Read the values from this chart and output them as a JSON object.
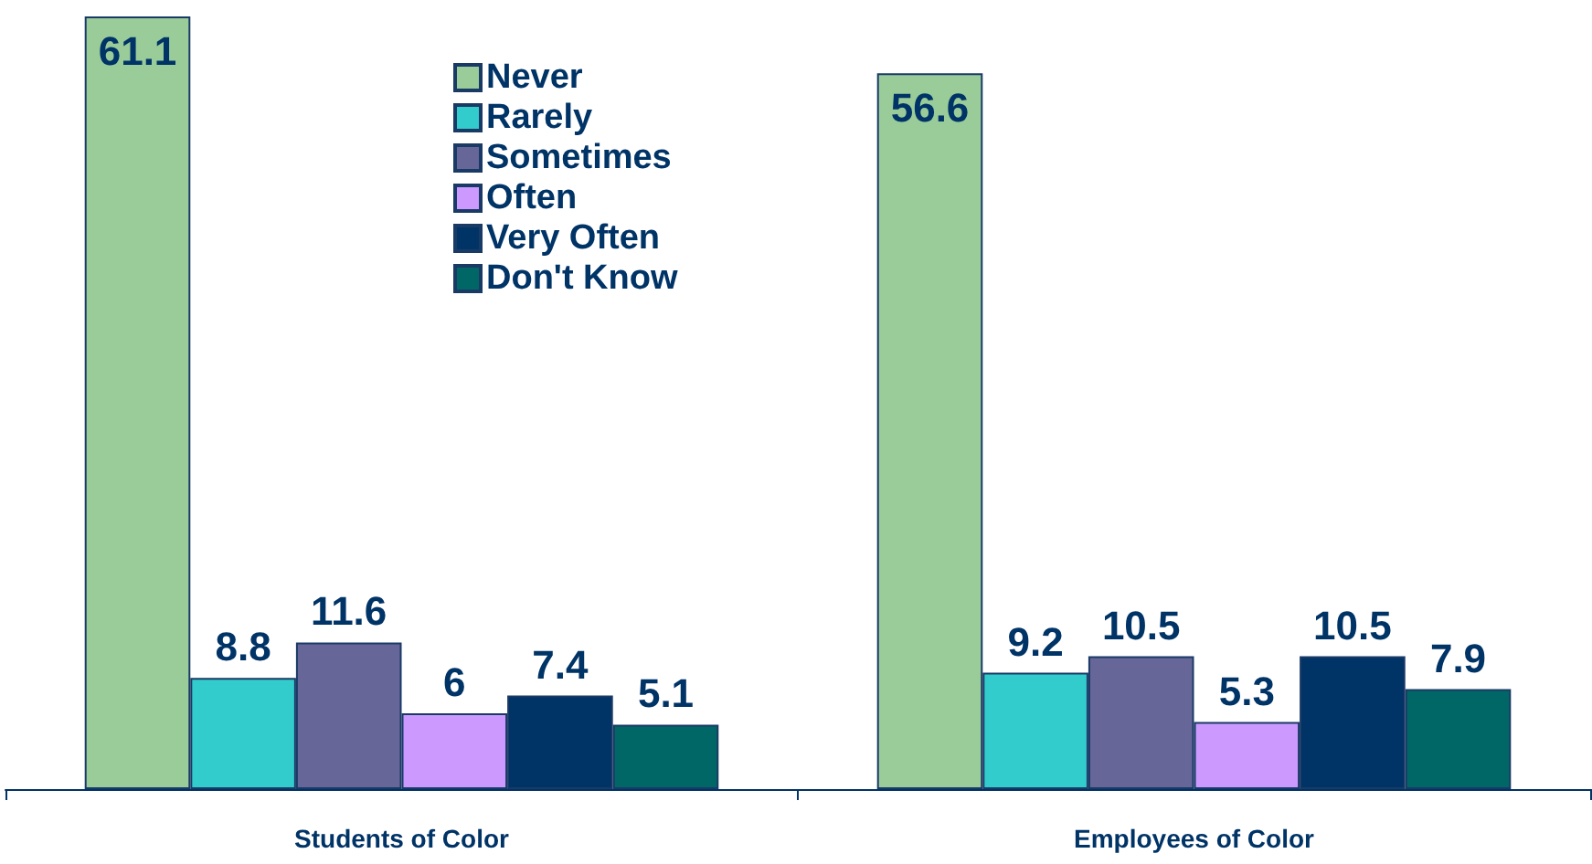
{
  "chart_data": {
    "type": "bar",
    "categories": [
      "Students of Color",
      "Employees of Color"
    ],
    "series": [
      {
        "name": "Never",
        "color": "#99cc99",
        "values": [
          61.1,
          56.6
        ]
      },
      {
        "name": "Rarely",
        "color": "#33cccc",
        "values": [
          8.8,
          9.2
        ]
      },
      {
        "name": "Sometimes",
        "color": "#666699",
        "values": [
          11.6,
          10.5
        ]
      },
      {
        "name": "Often",
        "color": "#cc99ff",
        "values": [
          6,
          5.3
        ]
      },
      {
        "name": "Very Often",
        "color": "#003366",
        "values": [
          7.4,
          10.5
        ]
      },
      {
        "name": "Don't Know",
        "color": "#006666",
        "values": [
          5.1,
          7.9
        ]
      }
    ],
    "data_labels": true,
    "legend": "top left"
  }
}
